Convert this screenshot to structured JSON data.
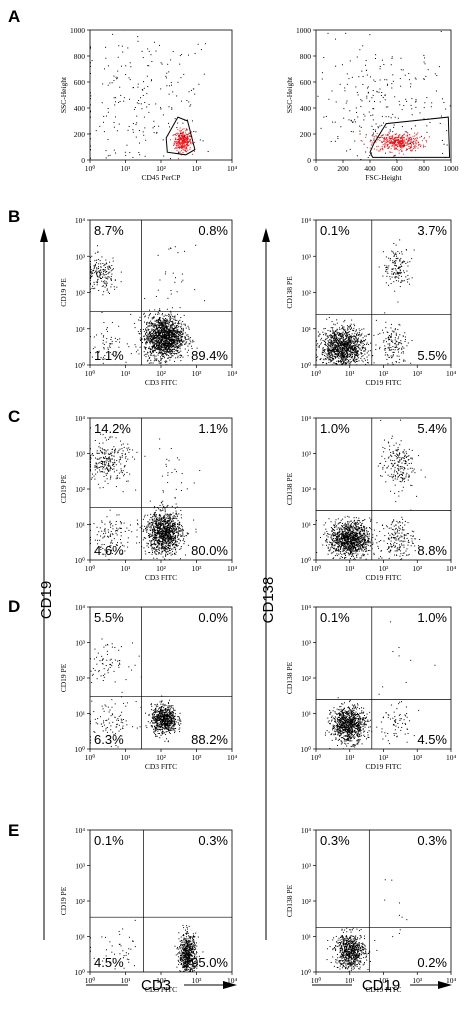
{
  "figure": {
    "panel_letters": [
      "A",
      "B",
      "C",
      "D",
      "E"
    ],
    "big_labels": {
      "left_vertical": "CD19",
      "right_vertical": "CD138",
      "bottom_left": "CD3",
      "bottom_right": "CD19"
    }
  },
  "chart_data": [
    {
      "id": "A-left",
      "panel": "A",
      "type": "scatter",
      "xlabel": "CD45 PerCP",
      "ylabel": "SSC-Height",
      "xscale": "log",
      "xlim": [
        1,
        10000
      ],
      "xticks": [
        "10⁰",
        "10¹",
        "10²",
        "10³",
        "10⁴"
      ],
      "yscale": "linear",
      "ylim": [
        0,
        1000
      ],
      "yticks": [
        "0",
        "200",
        "400",
        "600",
        "800",
        "1000"
      ],
      "gate_polygon": [
        [
          150,
          60
        ],
        [
          140,
          170
        ],
        [
          300,
          330
        ],
        [
          560,
          300
        ],
        [
          900,
          80
        ],
        [
          500,
          40
        ]
      ],
      "populations": [
        {
          "name": "",
          "color": "#e8161b",
          "n": 320,
          "center": [
            400,
            150
          ],
          "spread": [
            0.12,
            40
          ]
        },
        {
          "name": "",
          "color": "#000000",
          "n": 260,
          "center": [
            30,
            400
          ],
          "spread": [
            1.1,
            320
          ]
        }
      ]
    },
    {
      "id": "A-right",
      "panel": "A",
      "type": "scatter",
      "xlabel": "FSC-Height",
      "ylabel": "SSC-Height",
      "xscale": "linear",
      "xlim": [
        0,
        1000
      ],
      "xticks": [
        "0",
        "200",
        "400",
        "600",
        "800",
        "1000"
      ],
      "yscale": "linear",
      "ylim": [
        0,
        1000
      ],
      "yticks": [
        "0",
        "200",
        "400",
        "600",
        "800",
        "1000"
      ],
      "gate_polygon": [
        [
          400,
          60
        ],
        [
          430,
          130
        ],
        [
          520,
          280
        ],
        [
          980,
          330
        ],
        [
          990,
          20
        ],
        [
          420,
          20
        ]
      ],
      "populations": [
        {
          "name": "",
          "color": "#e8161b",
          "n": 420,
          "center": [
            600,
            140
          ],
          "spread": [
            90,
            35
          ]
        },
        {
          "name": "",
          "color": "#000000",
          "n": 300,
          "center": [
            500,
            350
          ],
          "spread": [
            260,
            280
          ]
        }
      ]
    },
    {
      "id": "B-left",
      "panel": "B",
      "type": "scatter",
      "xlabel": "CD3 FITC",
      "ylabel": "CD19 PE",
      "xscale": "log",
      "xlim": [
        1,
        10000
      ],
      "yscale": "log",
      "ylim": [
        1,
        10000
      ],
      "xticks": [
        "10⁰",
        "10¹",
        "10²",
        "10³",
        "10⁴"
      ],
      "yticks": [
        "10⁰",
        "10¹",
        "10²",
        "10³",
        "10⁴"
      ],
      "quadrant_gate": [
        28,
        30
      ],
      "quadrants": {
        "upper_left": "8.7%",
        "upper_right": "0.8%",
        "lower_left": "1.1%",
        "lower_right": "89.4%"
      },
      "populations": [
        {
          "color": "#000",
          "n": 1500,
          "center": [
            120,
            6
          ],
          "spread": [
            0.28,
            0.3
          ]
        },
        {
          "color": "#000",
          "n": 180,
          "center": [
            2,
            300
          ],
          "spread": [
            0.25,
            0.25
          ]
        },
        {
          "color": "#000",
          "n": 60,
          "center": [
            3,
            5
          ],
          "spread": [
            0.3,
            0.3
          ]
        },
        {
          "color": "#000",
          "n": 25,
          "center": [
            180,
            300
          ],
          "spread": [
            0.3,
            0.4
          ]
        }
      ]
    },
    {
      "id": "B-right",
      "panel": "B",
      "type": "scatter",
      "xlabel": "CD19 FITC",
      "ylabel": "CD138 PE",
      "xscale": "log",
      "xlim": [
        1,
        10000
      ],
      "yscale": "log",
      "ylim": [
        1,
        10000
      ],
      "xticks": [
        "10⁰",
        "10¹",
        "10²",
        "10³",
        "10⁴"
      ],
      "yticks": [
        "10⁰",
        "10¹",
        "10²",
        "10³",
        "10⁴"
      ],
      "quadrant_gate": [
        45,
        25
      ],
      "quadrants": {
        "upper_left": "0.1%",
        "upper_right": "3.7%",
        "lower_left": "",
        "lower_right": "5.5%"
      },
      "populations": [
        {
          "color": "#000",
          "n": 1200,
          "center": [
            6,
            3
          ],
          "spread": [
            0.32,
            0.28
          ]
        },
        {
          "color": "#000",
          "n": 140,
          "center": [
            200,
            4
          ],
          "spread": [
            0.25,
            0.3
          ]
        },
        {
          "color": "#000",
          "n": 140,
          "center": [
            250,
            500
          ],
          "spread": [
            0.2,
            0.28
          ]
        }
      ]
    },
    {
      "id": "C-left",
      "panel": "C",
      "type": "scatter",
      "xlabel": "CD3 FITC",
      "ylabel": "CD19 PE",
      "xscale": "log",
      "xlim": [
        1,
        10000
      ],
      "yscale": "log",
      "ylim": [
        1,
        10000
      ],
      "xticks": [
        "10⁰",
        "10¹",
        "10²",
        "10³",
        "10⁴"
      ],
      "yticks": [
        "10⁰",
        "10¹",
        "10²",
        "10³",
        "10⁴"
      ],
      "quadrant_gate": [
        28,
        30
      ],
      "quadrants": {
        "upper_left": "14.2%",
        "upper_right": "1.1%",
        "lower_left": "4.6%",
        "lower_right": "80.0%"
      },
      "populations": [
        {
          "color": "#000",
          "n": 1100,
          "center": [
            120,
            6
          ],
          "spread": [
            0.25,
            0.3
          ]
        },
        {
          "color": "#000",
          "n": 260,
          "center": [
            3,
            600
          ],
          "spread": [
            0.3,
            0.3
          ]
        },
        {
          "color": "#000",
          "n": 120,
          "center": [
            4,
            5
          ],
          "spread": [
            0.35,
            0.3
          ]
        },
        {
          "color": "#000",
          "n": 30,
          "center": [
            180,
            250
          ],
          "spread": [
            0.3,
            0.4
          ]
        }
      ]
    },
    {
      "id": "C-right",
      "panel": "C",
      "type": "scatter",
      "xlabel": "CD19 FITC",
      "ylabel": "CD138 PE",
      "xscale": "log",
      "xlim": [
        1,
        10000
      ],
      "yscale": "log",
      "ylim": [
        1,
        10000
      ],
      "xticks": [
        "10⁰",
        "10¹",
        "10²",
        "10³",
        "10⁴"
      ],
      "yticks": [
        "10⁰",
        "10¹",
        "10²",
        "10³",
        "10⁴"
      ],
      "quadrant_gate": [
        45,
        25
      ],
      "quadrants": {
        "upper_left": "1.0%",
        "upper_right": "5.4%",
        "lower_left": "",
        "lower_right": "8.8%"
      },
      "populations": [
        {
          "color": "#000",
          "n": 1100,
          "center": [
            10,
            4
          ],
          "spread": [
            0.3,
            0.25
          ]
        },
        {
          "color": "#000",
          "n": 180,
          "center": [
            250,
            4
          ],
          "spread": [
            0.25,
            0.3
          ]
        },
        {
          "color": "#000",
          "n": 200,
          "center": [
            250,
            500
          ],
          "spread": [
            0.25,
            0.35
          ]
        }
      ]
    },
    {
      "id": "D-left",
      "panel": "D",
      "type": "scatter",
      "xlabel": "CD3 FITC",
      "ylabel": "CD19 PE",
      "xscale": "log",
      "xlim": [
        1,
        10000
      ],
      "yscale": "log",
      "ylim": [
        1,
        10000
      ],
      "xticks": [
        "10⁰",
        "10¹",
        "10²",
        "10³",
        "10⁴"
      ],
      "yticks": [
        "10⁰",
        "10¹",
        "10²",
        "10³",
        "10⁴"
      ],
      "quadrant_gate": [
        28,
        30
      ],
      "quadrants": {
        "upper_left": "5.5%",
        "upper_right": "0.0%",
        "lower_left": "6.3%",
        "lower_right": "88.2%"
      },
      "populations": [
        {
          "color": "#000",
          "n": 700,
          "center": [
            120,
            7
          ],
          "spread": [
            0.18,
            0.2
          ]
        },
        {
          "color": "#000",
          "n": 70,
          "center": [
            3,
            300
          ],
          "spread": [
            0.3,
            0.25
          ]
        },
        {
          "color": "#000",
          "n": 90,
          "center": [
            4,
            6
          ],
          "spread": [
            0.35,
            0.3
          ]
        }
      ]
    },
    {
      "id": "D-right",
      "panel": "D",
      "type": "scatter",
      "xlabel": "CD19 FITC",
      "ylabel": "CD138 PE",
      "xscale": "log",
      "xlim": [
        1,
        10000
      ],
      "yscale": "log",
      "ylim": [
        1,
        10000
      ],
      "xticks": [
        "10⁰",
        "10¹",
        "10²",
        "10³",
        "10⁴"
      ],
      "yticks": [
        "10⁰",
        "10¹",
        "10²",
        "10³",
        "10⁴"
      ],
      "quadrant_gate": [
        45,
        25
      ],
      "quadrants": {
        "upper_left": "0.1%",
        "upper_right": "1.0%",
        "lower_left": "",
        "lower_right": "4.5%"
      },
      "populations": [
        {
          "color": "#000",
          "n": 900,
          "center": [
            9,
            5
          ],
          "spread": [
            0.25,
            0.25
          ]
        },
        {
          "color": "#000",
          "n": 70,
          "center": [
            200,
            5
          ],
          "spread": [
            0.3,
            0.3
          ]
        },
        {
          "color": "#000",
          "n": 8,
          "center": [
            300,
            300
          ],
          "spread": [
            0.5,
            0.4
          ]
        }
      ]
    },
    {
      "id": "E-left",
      "panel": "E",
      "type": "scatter",
      "xlabel": "CD3 FITC",
      "ylabel": "CD19 PE",
      "xscale": "log",
      "xlim": [
        1,
        10000
      ],
      "yscale": "log",
      "ylim": [
        1,
        10000
      ],
      "xticks": [
        "10⁰",
        "10¹",
        "10²",
        "10³",
        "10⁴"
      ],
      "yticks": [
        "10⁰",
        "10¹",
        "10²",
        "10³",
        "10⁴"
      ],
      "quadrant_gate": [
        32,
        35
      ],
      "quadrants": {
        "upper_left": "0.1%",
        "upper_right": "0.3%",
        "lower_left": "4.5%",
        "lower_right": "95.0%"
      },
      "populations": [
        {
          "color": "#000",
          "n": 650,
          "center": [
            550,
            3
          ],
          "spread": [
            0.12,
            0.3
          ]
        },
        {
          "color": "#000",
          "n": 45,
          "center": [
            6,
            3
          ],
          "spread": [
            0.4,
            0.3
          ]
        }
      ]
    },
    {
      "id": "E-right",
      "panel": "E",
      "type": "scatter",
      "xlabel": "CD19 FITC",
      "ylabel": "CD138 PE",
      "xscale": "log",
      "xlim": [
        1,
        10000
      ],
      "yscale": "log",
      "ylim": [
        1,
        10000
      ],
      "xticks": [
        "10⁰",
        "10¹",
        "10²",
        "10³",
        "10⁴"
      ],
      "yticks": [
        "10⁰",
        "10¹",
        "10²",
        "10³",
        "10⁴"
      ],
      "quadrant_gate": [
        38,
        18
      ],
      "quadrants": {
        "upper_left": "0.3%",
        "upper_right": "0.3%",
        "lower_left": "",
        "lower_right": "0.2%"
      },
      "populations": [
        {
          "color": "#000",
          "n": 700,
          "center": [
            10,
            4
          ],
          "spread": [
            0.22,
            0.25
          ]
        },
        {
          "color": "#000",
          "n": 10,
          "center": [
            200,
            30
          ],
          "spread": [
            0.4,
            0.5
          ]
        }
      ]
    }
  ]
}
